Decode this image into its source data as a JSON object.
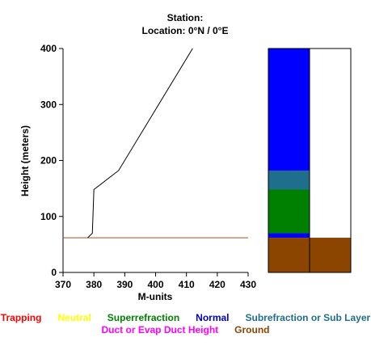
{
  "header": {
    "station_line": "Station:",
    "location_line": "Location:   0°N /   0°E"
  },
  "chart_data": {
    "type": "line",
    "xlabel": "M-units",
    "ylabel": "Height (meters)",
    "xlim": [
      370,
      430
    ],
    "ylim": [
      0,
      400
    ],
    "x_ticks": [
      370,
      380,
      390,
      400,
      410,
      420,
      430
    ],
    "y_ticks": [
      0,
      100,
      200,
      300,
      400
    ],
    "series": [
      {
        "x": [
          378.0,
          379.5,
          380.0,
          388.0,
          412.0
        ],
        "y": [
          62,
          70,
          148,
          182,
          400
        ]
      }
    ],
    "surface_height": 62,
    "surface_line_color": "#a0522d",
    "profile_bar": {
      "left_column": [
        {
          "type": "Ground",
          "from": 0,
          "to": 62,
          "color": "#8b4500"
        },
        {
          "type": "Normal",
          "from": 62,
          "to": 70,
          "color": "#0000ff"
        },
        {
          "type": "Superrefraction",
          "from": 70,
          "to": 148,
          "color": "#008000"
        },
        {
          "type": "Subrefraction or Sub Layer",
          "from": 148,
          "to": 182,
          "color": "#1e6e8c"
        },
        {
          "type": "Normal",
          "from": 182,
          "to": 400,
          "color": "#0000ff"
        }
      ],
      "right_column": [
        {
          "type": "Ground",
          "from": 0,
          "to": 62,
          "color": "#8b4500"
        }
      ]
    }
  },
  "legend": {
    "row1": [
      {
        "label": "Trapping",
        "color": "#ff0000"
      },
      {
        "label": "Neutral",
        "color": "#ffff00"
      },
      {
        "label": "Superrefraction",
        "color": "#008000"
      },
      {
        "label": "Normal",
        "color": "#0000cc"
      },
      {
        "label": "Subrefraction or Sub Layer",
        "color": "#1e6e8c"
      }
    ],
    "row2": [
      {
        "label": "Duct or Evap Duct Height",
        "color": "#ff00ff"
      },
      {
        "label": "Ground",
        "color": "#8b4500"
      }
    ]
  }
}
